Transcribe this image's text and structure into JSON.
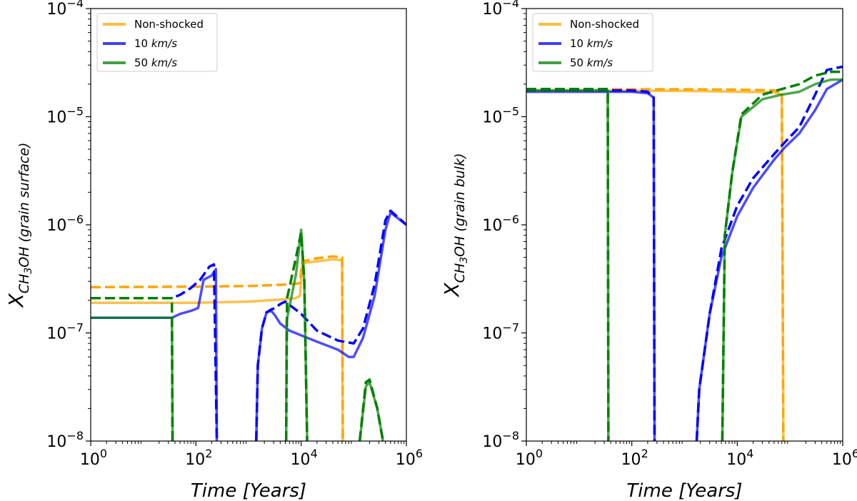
{
  "chart_data": [
    {
      "type": "line",
      "xscale": "log",
      "yscale": "log",
      "xlim": [
        1,
        1000000
      ],
      "ylim": [
        1e-08,
        0.0001
      ],
      "xlabel": "Time [Years]",
      "ylabel": "X_CH3OH (grain surface)",
      "ylabel_parts": {
        "main": "X",
        "sub": "CH",
        "sub_num": "3",
        "sub_rest": "OH",
        "paren": "(grain surface)"
      },
      "xticks": [
        {
          "base": "10",
          "exp": "0"
        },
        {
          "base": "10",
          "exp": "2"
        },
        {
          "base": "10",
          "exp": "4"
        },
        {
          "base": "10",
          "exp": "6"
        }
      ],
      "yticks": [
        {
          "base": "10",
          "exp": "−8"
        },
        {
          "base": "10",
          "exp": "−7"
        },
        {
          "base": "10",
          "exp": "−6"
        },
        {
          "base": "10",
          "exp": "−5"
        },
        {
          "base": "10",
          "exp": "−4"
        }
      ],
      "legend": [
        {
          "label": "Non-shocked",
          "color": "#ffa500"
        },
        {
          "label": "10 km/s",
          "color": "#0000ff",
          "prefix": "10 ",
          "unit": "km/s"
        },
        {
          "label": "50 km/s",
          "color": "#008000",
          "prefix": "50 ",
          "unit": "km/s"
        }
      ],
      "series": [
        {
          "name": "Non-shocked",
          "style": "solid",
          "color": "#ffa500",
          "points": [
            [
              1,
              1.9e-07
            ],
            [
              100,
              1.9e-07
            ],
            [
              1000,
              1.95e-07
            ],
            [
              5000,
              2.05e-07
            ],
            [
              8000,
              2.1e-07
            ],
            [
              9500,
              2.2e-07
            ],
            [
              10500,
              4.4e-07
            ],
            [
              20000,
              4.6e-07
            ],
            [
              40000,
              4.8e-07
            ],
            [
              60000,
              4.7e-07
            ],
            [
              62000,
              1e-08
            ]
          ]
        },
        {
          "name": "Non-shocked",
          "style": "dashed",
          "color": "#ffa500",
          "points": [
            [
              1,
              2.65e-07
            ],
            [
              100,
              2.68e-07
            ],
            [
              1000,
              2.72e-07
            ],
            [
              5000,
              2.8e-07
            ],
            [
              8000,
              2.85e-07
            ],
            [
              9500,
              2.9e-07
            ],
            [
              10500,
              4.6e-07
            ],
            [
              20000,
              4.9e-07
            ],
            [
              40000,
              5.1e-07
            ],
            [
              60000,
              5e-07
            ],
            [
              62000,
              1e-08
            ]
          ]
        },
        {
          "name": "10 km/s",
          "style": "solid",
          "color": "#0000ff",
          "points": [
            [
              1,
              1.38e-07
            ],
            [
              35,
              1.38e-07
            ],
            [
              50,
              1.5e-07
            ],
            [
              80,
              1.6e-07
            ],
            [
              110,
              1.7e-07
            ],
            [
              140,
              3.1e-07
            ],
            [
              200,
              3.4e-07
            ],
            [
              240,
              3.9e-07
            ],
            [
              250,
              1e-08
            ],
            [
              null,
              null
            ],
            [
              1400,
              1e-08
            ],
            [
              1500,
              5e-08
            ],
            [
              1800,
              1.1e-07
            ],
            [
              2200,
              1.55e-07
            ],
            [
              2700,
              1.6e-07
            ],
            [
              3200,
              1.45e-07
            ],
            [
              4000,
              1.22e-07
            ],
            [
              6000,
              1.05e-07
            ],
            [
              10000,
              9.5e-08
            ],
            [
              20000,
              8.3e-08
            ],
            [
              50000,
              7e-08
            ],
            [
              80000,
              6e-08
            ],
            [
              100000,
              6e-08
            ],
            [
              150000,
              9e-08
            ],
            [
              250000,
              2.2e-07
            ],
            [
              400000,
              9e-07
            ],
            [
              500000,
              1.3e-06
            ],
            [
              1000000,
              1e-06
            ]
          ]
        },
        {
          "name": "10 km/s",
          "style": "dashed",
          "color": "#0000ff",
          "points": [
            [
              1,
              2.1e-07
            ],
            [
              35,
              2.1e-07
            ],
            [
              50,
              2.25e-07
            ],
            [
              80,
              2.6e-07
            ],
            [
              120,
              3.1e-07
            ],
            [
              180,
              4.1e-07
            ],
            [
              220,
              4.3e-07
            ],
            [
              250,
              1e-08
            ],
            [
              null,
              null
            ],
            [
              1400,
              1e-08
            ],
            [
              1500,
              5e-08
            ],
            [
              1800,
              1.1e-07
            ],
            [
              2200,
              1.55e-07
            ],
            [
              2700,
              1.65e-07
            ],
            [
              3200,
              1.7e-07
            ],
            [
              4000,
              1.85e-07
            ],
            [
              5000,
              1.95e-07
            ],
            [
              10000,
              1.5e-07
            ],
            [
              20000,
              1.05e-07
            ],
            [
              50000,
              8.5e-08
            ],
            [
              100000,
              8e-08
            ],
            [
              150000,
              1.1e-07
            ],
            [
              250000,
              2.8e-07
            ],
            [
              400000,
              1.1e-06
            ],
            [
              500000,
              1.35e-06
            ],
            [
              1000000,
              1e-06
            ]
          ]
        },
        {
          "name": "50 km/s",
          "style": "solid",
          "color": "#008000",
          "points": [
            [
              1,
              1.38e-07
            ],
            [
              35,
              1.38e-07
            ],
            [
              36,
              1e-08
            ],
            [
              null,
              null
            ],
            [
              5200,
              1e-08
            ],
            [
              5300,
              1.3e-07
            ],
            [
              8000,
              3.5e-07
            ],
            [
              10000,
              9e-07
            ],
            [
              11500,
              3e-07
            ],
            [
              13000,
              1e-08
            ],
            [
              null,
              null
            ],
            [
              130000,
              1e-08
            ],
            [
              170000,
              3.2e-08
            ],
            [
              200000,
              3.5e-08
            ],
            [
              280000,
              2e-08
            ],
            [
              360000,
              1e-08
            ]
          ]
        },
        {
          "name": "50 km/s",
          "style": "dashed",
          "color": "#008000",
          "points": [
            [
              1,
              2.1e-07
            ],
            [
              35,
              2.1e-07
            ],
            [
              36,
              1e-08
            ],
            [
              null,
              null
            ],
            [
              5200,
              1e-08
            ],
            [
              5400,
              2.1e-07
            ],
            [
              8000,
              5e-07
            ],
            [
              10000,
              8.5e-07
            ],
            [
              11500,
              3e-07
            ],
            [
              13000,
              1e-08
            ],
            [
              null,
              null
            ],
            [
              130000,
              1e-08
            ],
            [
              170000,
              3.5e-08
            ],
            [
              200000,
              3.7e-08
            ],
            [
              280000,
              2e-08
            ],
            [
              360000,
              1e-08
            ]
          ]
        }
      ]
    },
    {
      "type": "line",
      "xscale": "log",
      "yscale": "log",
      "xlim": [
        1,
        1000000
      ],
      "ylim": [
        1e-08,
        0.0001
      ],
      "xlabel": "Time [Years]",
      "ylabel": "X_CH3OH (grain bulk)",
      "ylabel_parts": {
        "main": "X",
        "sub": "CH",
        "sub_num": "3",
        "sub_rest": "OH",
        "paren": "(grain bulk)"
      },
      "xticks": [
        {
          "base": "10",
          "exp": "0"
        },
        {
          "base": "10",
          "exp": "2"
        },
        {
          "base": "10",
          "exp": "4"
        },
        {
          "base": "10",
          "exp": "6"
        }
      ],
      "yticks": [
        {
          "base": "10",
          "exp": "−8"
        },
        {
          "base": "10",
          "exp": "−7"
        },
        {
          "base": "10",
          "exp": "−6"
        },
        {
          "base": "10",
          "exp": "−5"
        },
        {
          "base": "10",
          "exp": "−4"
        }
      ],
      "legend": [
        {
          "label": "Non-shocked",
          "color": "#ffa500"
        },
        {
          "label": "10 km/s",
          "color": "#0000ff",
          "prefix": "10 ",
          "unit": "km/s"
        },
        {
          "label": "50 km/s",
          "color": "#008000",
          "prefix": "50 ",
          "unit": "km/s"
        }
      ],
      "series": [
        {
          "name": "Non-shocked",
          "style": "solid",
          "color": "#ffa500",
          "points": [
            [
              1,
              1.75e-05
            ],
            [
              1000,
              1.73e-05
            ],
            [
              10000,
              1.7e-05
            ],
            [
              50000,
              1.68e-05
            ],
            [
              70000,
              1.6e-05
            ],
            [
              75000,
              1e-08
            ]
          ]
        },
        {
          "name": "Non-shocked",
          "style": "dashed",
          "color": "#ffa500",
          "points": [
            [
              1,
              1.8e-05
            ],
            [
              1000,
              1.79e-05
            ],
            [
              10000,
              1.78e-05
            ],
            [
              50000,
              1.75e-05
            ],
            [
              70000,
              1.68e-05
            ],
            [
              75000,
              1e-08
            ]
          ]
        },
        {
          "name": "10 km/s",
          "style": "solid",
          "color": "#0000ff",
          "points": [
            [
              1,
              1.7e-05
            ],
            [
              100,
              1.7e-05
            ],
            [
              200,
              1.65e-05
            ],
            [
              260,
              1.5e-05
            ],
            [
              270,
              1e-08
            ],
            [
              null,
              null
            ],
            [
              1700,
              1e-08
            ],
            [
              1900,
              3e-08
            ],
            [
              3000,
              1.5e-07
            ],
            [
              5000,
              5e-07
            ],
            [
              10000,
              1.2e-06
            ],
            [
              20000,
              2.2e-06
            ],
            [
              50000,
              4e-06
            ],
            [
              80000,
              5.2e-06
            ],
            [
              150000,
              7e-06
            ],
            [
              300000,
              1.15e-05
            ],
            [
              500000,
              1.8e-05
            ],
            [
              1000000,
              2.2e-05
            ]
          ]
        },
        {
          "name": "10 km/s",
          "style": "dashed",
          "color": "#0000ff",
          "points": [
            [
              1,
              1.75e-05
            ],
            [
              100,
              1.75e-05
            ],
            [
              200,
              1.7e-05
            ],
            [
              260,
              1.5e-05
            ],
            [
              270,
              1e-08
            ],
            [
              null,
              null
            ],
            [
              1700,
              1e-08
            ],
            [
              1900,
              3e-08
            ],
            [
              3000,
              1.5e-07
            ],
            [
              5000,
              6e-07
            ],
            [
              10000,
              1.5e-06
            ],
            [
              20000,
              2.7e-06
            ],
            [
              50000,
              4.5e-06
            ],
            [
              80000,
              5.8e-06
            ],
            [
              150000,
              8e-06
            ],
            [
              300000,
              1.6e-05
            ],
            [
              500000,
              2.7e-05
            ],
            [
              1000000,
              2.9e-05
            ]
          ]
        },
        {
          "name": "50 km/s",
          "style": "solid",
          "color": "#008000",
          "points": [
            [
              1,
              1.75e-05
            ],
            [
              35,
              1.75e-05
            ],
            [
              36,
              1e-08
            ],
            [
              null,
              null
            ],
            [
              5200,
              1e-08
            ],
            [
              5800,
              8e-07
            ],
            [
              8000,
              3e-06
            ],
            [
              12000,
              1e-05
            ],
            [
              30000,
              1.45e-05
            ],
            [
              70000,
              1.6e-05
            ],
            [
              150000,
              1.7e-05
            ],
            [
              300000,
              2e-05
            ],
            [
              600000,
              2.2e-05
            ],
            [
              1000000,
              2.2e-05
            ]
          ]
        },
        {
          "name": "50 km/s",
          "style": "dashed",
          "color": "#008000",
          "points": [
            [
              1,
              1.8e-05
            ],
            [
              35,
              1.8e-05
            ],
            [
              36,
              1e-08
            ],
            [
              null,
              null
            ],
            [
              5200,
              1e-08
            ],
            [
              5800,
              8e-07
            ],
            [
              8000,
              3e-06
            ],
            [
              12000,
              1.05e-05
            ],
            [
              30000,
              1.6e-05
            ],
            [
              70000,
              1.8e-05
            ],
            [
              150000,
              2e-05
            ],
            [
              300000,
              2.4e-05
            ],
            [
              600000,
              2.6e-05
            ],
            [
              1000000,
              2.6e-05
            ]
          ]
        }
      ]
    }
  ]
}
